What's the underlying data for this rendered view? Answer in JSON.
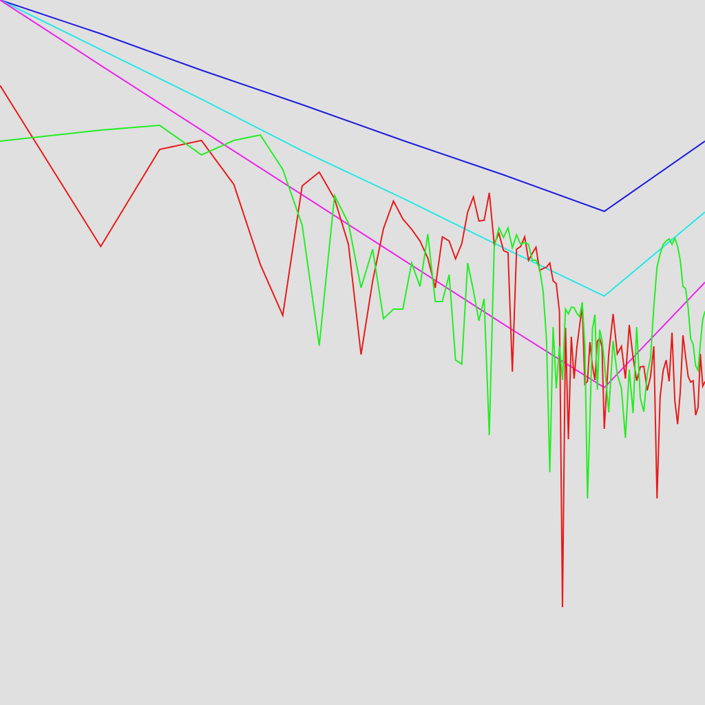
{
  "chart_data": {
    "type": "line",
    "title": "",
    "xlabel": "",
    "ylabel": "",
    "axes_visible": false,
    "grid": false,
    "legend": "none",
    "background": "#e0e0e0",
    "x_scale": "log",
    "xlim": [
      1,
      128
    ],
    "ylim": [
      0,
      1024
    ],
    "series": [
      {
        "color": "#1a1ae0",
        "x": [
          1,
          2,
          4,
          8,
          16,
          32,
          64,
          128
        ],
        "y": [
          1024,
          975,
          922,
          872,
          820,
          770,
          717,
          819
        ]
      },
      {
        "color": "#22e8e8",
        "x": [
          1,
          2,
          4,
          8,
          16,
          32,
          64,
          128
        ],
        "y": [
          1024,
          952,
          880,
          805,
          736,
          664,
          594,
          716
        ]
      },
      {
        "color": "#ee22ee",
        "x": [
          1,
          2,
          4,
          8,
          16,
          32,
          64,
          128
        ],
        "y": [
          1024,
          929,
          835,
          741,
          647,
          553,
          461,
          614
        ]
      },
      {
        "color": "#e81a1a",
        "x": [
          1,
          2,
          3,
          4,
          5,
          6,
          7,
          8,
          9,
          10,
          11,
          12,
          13,
          14,
          15,
          16,
          17,
          18,
          19,
          20,
          21,
          22,
          23,
          24,
          25,
          26,
          27,
          28,
          29,
          30,
          31,
          32,
          33,
          34,
          35,
          36,
          37,
          38,
          39,
          40,
          41,
          42,
          43,
          44,
          45,
          46,
          47,
          48,
          49,
          50,
          51,
          52,
          53,
          54,
          55,
          56,
          57,
          58,
          59,
          60,
          61,
          62,
          63,
          64,
          66,
          68,
          70,
          72,
          74,
          76,
          78,
          80,
          82,
          84,
          86,
          88,
          90,
          92,
          94,
          96,
          98,
          100,
          102,
          104,
          106,
          108,
          110,
          112,
          114,
          116,
          118,
          120,
          122,
          124,
          126,
          128
        ],
        "y": [
          900,
          666,
          807,
          820,
          756,
          640,
          566,
          754,
          774,
          735,
          669,
          509,
          616,
          692,
          732,
          706,
          691,
          674,
          649,
          606,
          680,
          674,
          648,
          670,
          716,
          738,
          703,
          704,
          744,
          670,
          685,
          660,
          657,
          484,
          662,
          666,
          680,
          646,
          656,
          665,
          631,
          634,
          636,
          642,
          616,
          612,
          571,
          142,
          548,
          386,
          535,
          474,
          520,
          551,
          580,
          466,
          470,
          527,
          493,
          472,
          528,
          533,
          520,
          401,
          510,
          568,
          510,
          521,
          474,
          552,
          505,
          471,
          491,
          492,
          457,
          477,
          521,
          300,
          447,
          486,
          501,
          470,
          541,
          442,
          408,
          455,
          537,
          506,
          477,
          469,
          471,
          421,
          432,
          510,
          463,
          470
        ]
      },
      {
        "color": "#22ee22",
        "x": [
          1,
          2,
          3,
          4,
          5,
          6,
          7,
          8,
          9,
          10,
          11,
          12,
          13,
          14,
          15,
          16,
          17,
          18,
          19,
          20,
          21,
          22,
          23,
          24,
          25,
          26,
          27,
          28,
          29,
          30,
          31,
          32,
          33,
          34,
          35,
          36,
          37,
          38,
          39,
          40,
          41,
          42,
          43,
          44,
          45,
          46,
          47,
          48,
          49,
          50,
          51,
          52,
          53,
          54,
          55,
          56,
          57,
          58,
          59,
          60,
          61,
          62,
          63,
          64,
          66,
          68,
          70,
          72,
          74,
          76,
          78,
          80,
          82,
          84,
          86,
          88,
          90,
          92,
          94,
          96,
          98,
          100,
          102,
          104,
          106,
          108,
          110,
          112,
          114,
          116,
          118,
          120,
          122,
          124,
          126,
          128
        ],
        "y": [
          819,
          835,
          842,
          799,
          820,
          828,
          778,
          697,
          522,
          740,
          700,
          606,
          662,
          561,
          575,
          575,
          642,
          608,
          684,
          586,
          586,
          625,
          501,
          495,
          642,
          602,
          558,
          590,
          392,
          665,
          693,
          679,
          693,
          664,
          683,
          669,
          672,
          669,
          646,
          646,
          634,
          602,
          531,
          338,
          549,
          460,
          521,
          472,
          575,
          568,
          578,
          577,
          569,
          564,
          585,
          522,
          300,
          416,
          546,
          567,
          458,
          545,
          530,
          500,
          425,
          529,
          480,
          460,
          388,
          487,
          424,
          549,
          446,
          426,
          481,
          504,
          579,
          636,
          655,
          669,
          674,
          677,
          669,
          678,
          666,
          646,
          608,
          605,
          576,
          532,
          524,
          493,
          486,
          525,
          560,
          572
        ]
      }
    ]
  }
}
